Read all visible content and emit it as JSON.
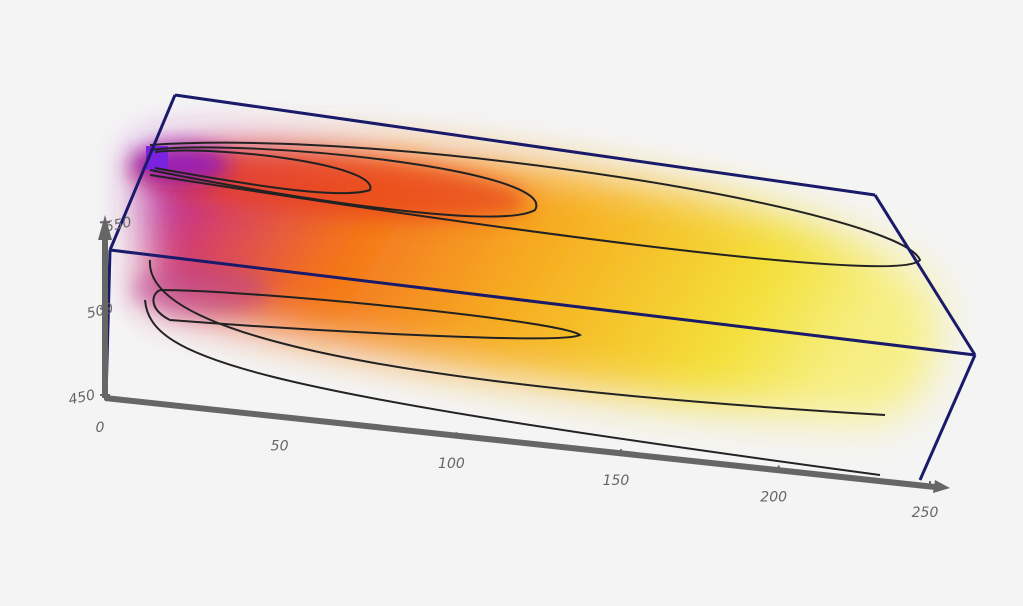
{
  "chart_data": {
    "type": "volume",
    "xlim": [
      0,
      250
    ],
    "xticks": [
      0,
      50,
      100,
      150,
      200,
      250
    ],
    "ylim": [
      450,
      560
    ],
    "yticks": [
      450,
      500,
      550
    ]
  }
}
